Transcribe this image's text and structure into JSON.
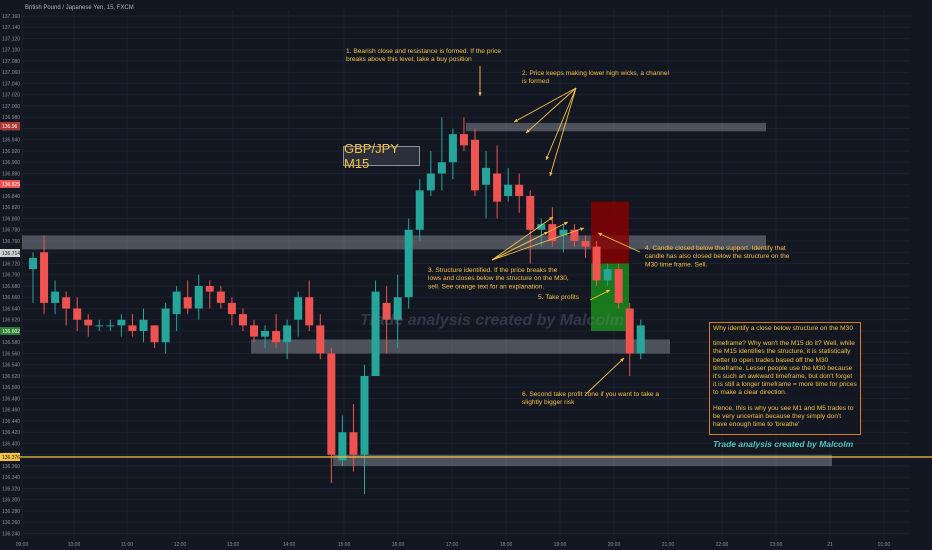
{
  "header": {
    "symbol_line": "British Pound / Japanese Yen, 15, FXCM"
  },
  "title_box": "GBP/JPY M15",
  "watermark": "Trade analysis created by Malcolm",
  "credit": "Trade analysis created by Malcolm",
  "note": {
    "p1": "Why identify a close below structure on the M30",
    "p2": "timeframe? Why won't the M15 do it? Well, while the M15 identifies the structure, it is statistically better to open trades based off the M30 timeframe. Lesser people use the M30 because it's such an awkward timeframe, but don't forget it is still a longer timeframe = more time for prices to make a clear direction.",
    "p3": "Hence, this is why you see M1 and M5 trades to be very uncertain because they simply don't have enough time to 'breathe'"
  },
  "annotations": {
    "a1": [
      "1. Bearish close and resistance is formed. If the price",
      "breaks above this level, take a buy position"
    ],
    "a2": [
      "2. Price keeps making lower high wicks, a channel",
      "is formed"
    ],
    "a3": [
      "3. Structure identified. If the price breaks the",
      "lows and closes below the structure on the M30,",
      "sell. See orange text for an explanation."
    ],
    "a4": [
      "4. Candle closed below the support. Identify that",
      "candle has also closed below the structure on the",
      "M30 time frame. Sell."
    ],
    "a5": [
      "5. Take profits"
    ],
    "a6": [
      "6. Second take profit zone if you want to take a",
      "slightly bigger risk"
    ]
  },
  "colors": {
    "background": "#131722",
    "bull": "#26a69a",
    "bear": "#ef5350",
    "annotation": "#f5c242",
    "zone": "#9598a1",
    "stop": "#8b0000",
    "target": "#1b8a1b",
    "level_line": "#f5c242"
  },
  "price_labels": {
    "marker_1": "136.96",
    "marker_2": "136.825",
    "marker_3": "136.714",
    "current": "136.602",
    "level": "136.376"
  },
  "chart_data": {
    "type": "candlestick",
    "title": "GBP/JPY M15",
    "ylim": [
      136.22,
      137.18
    ],
    "y_ticks": [
      "137.160",
      "137.140",
      "137.120",
      "137.100",
      "137.080",
      "137.060",
      "137.040",
      "137.020",
      "137.000",
      "136.980",
      "136.960",
      "136.940",
      "136.920",
      "136.900",
      "136.880",
      "136.860",
      "136.840",
      "136.820",
      "136.800",
      "136.780",
      "136.760",
      "136.740",
      "136.720",
      "136.700",
      "136.680",
      "136.660",
      "136.640",
      "136.620",
      "136.600",
      "136.580",
      "136.560",
      "136.540",
      "136.520",
      "136.500",
      "136.480",
      "136.460",
      "136.440",
      "136.420",
      "136.400",
      "136.380",
      "136.360",
      "136.340",
      "136.320",
      "136.300",
      "136.280",
      "136.260",
      "136.240"
    ],
    "x_ticks": [
      "09:00",
      "10:00",
      "11:00",
      "12:00",
      "13:00",
      "14:00",
      "15:00",
      "16:00",
      "17:00",
      "18:00",
      "19:00",
      "20:00",
      "21:00",
      "22:00",
      "23:00",
      "21",
      "01:00"
    ],
    "candles": [
      {
        "o": 136.71,
        "h": 136.74,
        "l": 136.65,
        "c": 136.73
      },
      {
        "o": 136.74,
        "h": 136.77,
        "l": 136.63,
        "c": 136.65
      },
      {
        "o": 136.65,
        "h": 136.69,
        "l": 136.63,
        "c": 136.67
      },
      {
        "o": 136.66,
        "h": 136.67,
        "l": 136.61,
        "c": 136.64
      },
      {
        "o": 136.64,
        "h": 136.66,
        "l": 136.6,
        "c": 136.62
      },
      {
        "o": 136.62,
        "h": 136.63,
        "l": 136.59,
        "c": 136.61
      },
      {
        "o": 136.61,
        "h": 136.62,
        "l": 136.6,
        "c": 136.61
      },
      {
        "o": 136.61,
        "h": 136.62,
        "l": 136.6,
        "c": 136.61
      },
      {
        "o": 136.61,
        "h": 136.63,
        "l": 136.59,
        "c": 136.62
      },
      {
        "o": 136.61,
        "h": 136.63,
        "l": 136.59,
        "c": 136.6
      },
      {
        "o": 136.6,
        "h": 136.64,
        "l": 136.58,
        "c": 136.62
      },
      {
        "o": 136.61,
        "h": 136.61,
        "l": 136.57,
        "c": 136.58
      },
      {
        "o": 136.58,
        "h": 136.65,
        "l": 136.56,
        "c": 136.64
      },
      {
        "o": 136.63,
        "h": 136.68,
        "l": 136.6,
        "c": 136.67
      },
      {
        "o": 136.66,
        "h": 136.69,
        "l": 136.63,
        "c": 136.64
      },
      {
        "o": 136.64,
        "h": 136.7,
        "l": 136.62,
        "c": 136.68
      },
      {
        "o": 136.68,
        "h": 136.69,
        "l": 136.64,
        "c": 136.67
      },
      {
        "o": 136.67,
        "h": 136.68,
        "l": 136.64,
        "c": 136.65
      },
      {
        "o": 136.65,
        "h": 136.66,
        "l": 136.61,
        "c": 136.63
      },
      {
        "o": 136.63,
        "h": 136.64,
        "l": 136.6,
        "c": 136.61
      },
      {
        "o": 136.61,
        "h": 136.62,
        "l": 136.58,
        "c": 136.59
      },
      {
        "o": 136.59,
        "h": 136.61,
        "l": 136.57,
        "c": 136.6
      },
      {
        "o": 136.6,
        "h": 136.63,
        "l": 136.57,
        "c": 136.58
      },
      {
        "o": 136.58,
        "h": 136.62,
        "l": 136.55,
        "c": 136.61
      },
      {
        "o": 136.62,
        "h": 136.67,
        "l": 136.59,
        "c": 136.66
      },
      {
        "o": 136.66,
        "h": 136.69,
        "l": 136.6,
        "c": 136.61
      },
      {
        "o": 136.61,
        "h": 136.63,
        "l": 136.55,
        "c": 136.56
      },
      {
        "o": 136.56,
        "h": 136.57,
        "l": 136.33,
        "c": 136.38
      },
      {
        "o": 136.37,
        "h": 136.45,
        "l": 136.36,
        "c": 136.42
      },
      {
        "o": 136.42,
        "h": 136.47,
        "l": 136.35,
        "c": 136.38
      },
      {
        "o": 136.38,
        "h": 136.54,
        "l": 136.31,
        "c": 136.52
      },
      {
        "o": 136.52,
        "h": 136.69,
        "l": 136.52,
        "c": 136.67
      },
      {
        "o": 136.65,
        "h": 136.68,
        "l": 136.56,
        "c": 136.62
      },
      {
        "o": 136.62,
        "h": 136.7,
        "l": 136.57,
        "c": 136.66
      },
      {
        "o": 136.66,
        "h": 136.8,
        "l": 136.64,
        "c": 136.78
      },
      {
        "o": 136.78,
        "h": 136.87,
        "l": 136.76,
        "c": 136.85
      },
      {
        "o": 136.85,
        "h": 136.92,
        "l": 136.84,
        "c": 136.88
      },
      {
        "o": 136.88,
        "h": 136.98,
        "l": 136.85,
        "c": 136.9
      },
      {
        "o": 136.9,
        "h": 136.96,
        "l": 136.87,
        "c": 136.95
      },
      {
        "o": 136.95,
        "h": 136.98,
        "l": 136.92,
        "c": 136.93
      },
      {
        "o": 136.94,
        "h": 136.96,
        "l": 136.84,
        "c": 136.85
      },
      {
        "o": 136.86,
        "h": 136.92,
        "l": 136.8,
        "c": 136.89
      },
      {
        "o": 136.88,
        "h": 136.93,
        "l": 136.8,
        "c": 136.83
      },
      {
        "o": 136.84,
        "h": 136.89,
        "l": 136.83,
        "c": 136.86
      },
      {
        "o": 136.86,
        "h": 136.88,
        "l": 136.81,
        "c": 136.84
      },
      {
        "o": 136.84,
        "h": 136.85,
        "l": 136.72,
        "c": 136.78
      },
      {
        "o": 136.78,
        "h": 136.8,
        "l": 136.75,
        "c": 136.79
      },
      {
        "o": 136.79,
        "h": 136.82,
        "l": 136.75,
        "c": 136.76
      },
      {
        "o": 136.77,
        "h": 136.79,
        "l": 136.74,
        "c": 136.78
      },
      {
        "o": 136.78,
        "h": 136.79,
        "l": 136.75,
        "c": 136.76
      },
      {
        "o": 136.76,
        "h": 136.77,
        "l": 136.73,
        "c": 136.75
      },
      {
        "o": 136.75,
        "h": 136.76,
        "l": 136.68,
        "c": 136.69
      },
      {
        "o": 136.69,
        "h": 136.72,
        "l": 136.68,
        "c": 136.71
      },
      {
        "o": 136.71,
        "h": 136.72,
        "l": 136.64,
        "c": 136.65
      },
      {
        "o": 136.64,
        "h": 136.65,
        "l": 136.52,
        "c": 136.56
      },
      {
        "o": 136.56,
        "h": 136.62,
        "l": 136.55,
        "c": 136.61
      }
    ],
    "zones": [
      {
        "name": "resistance-zone",
        "y_top": 136.97,
        "y_bottom": 136.955
      },
      {
        "name": "support-zone",
        "y_top": 136.77,
        "y_bottom": 136.745
      },
      {
        "name": "tp1-zone",
        "y_top": 136.585,
        "y_bottom": 136.56
      },
      {
        "name": "tp2-zone",
        "y_top": 136.38,
        "y_bottom": 136.36
      }
    ],
    "position": {
      "entry": 136.72,
      "stop": 136.83,
      "target": 136.6
    },
    "level_line": 136.376
  }
}
